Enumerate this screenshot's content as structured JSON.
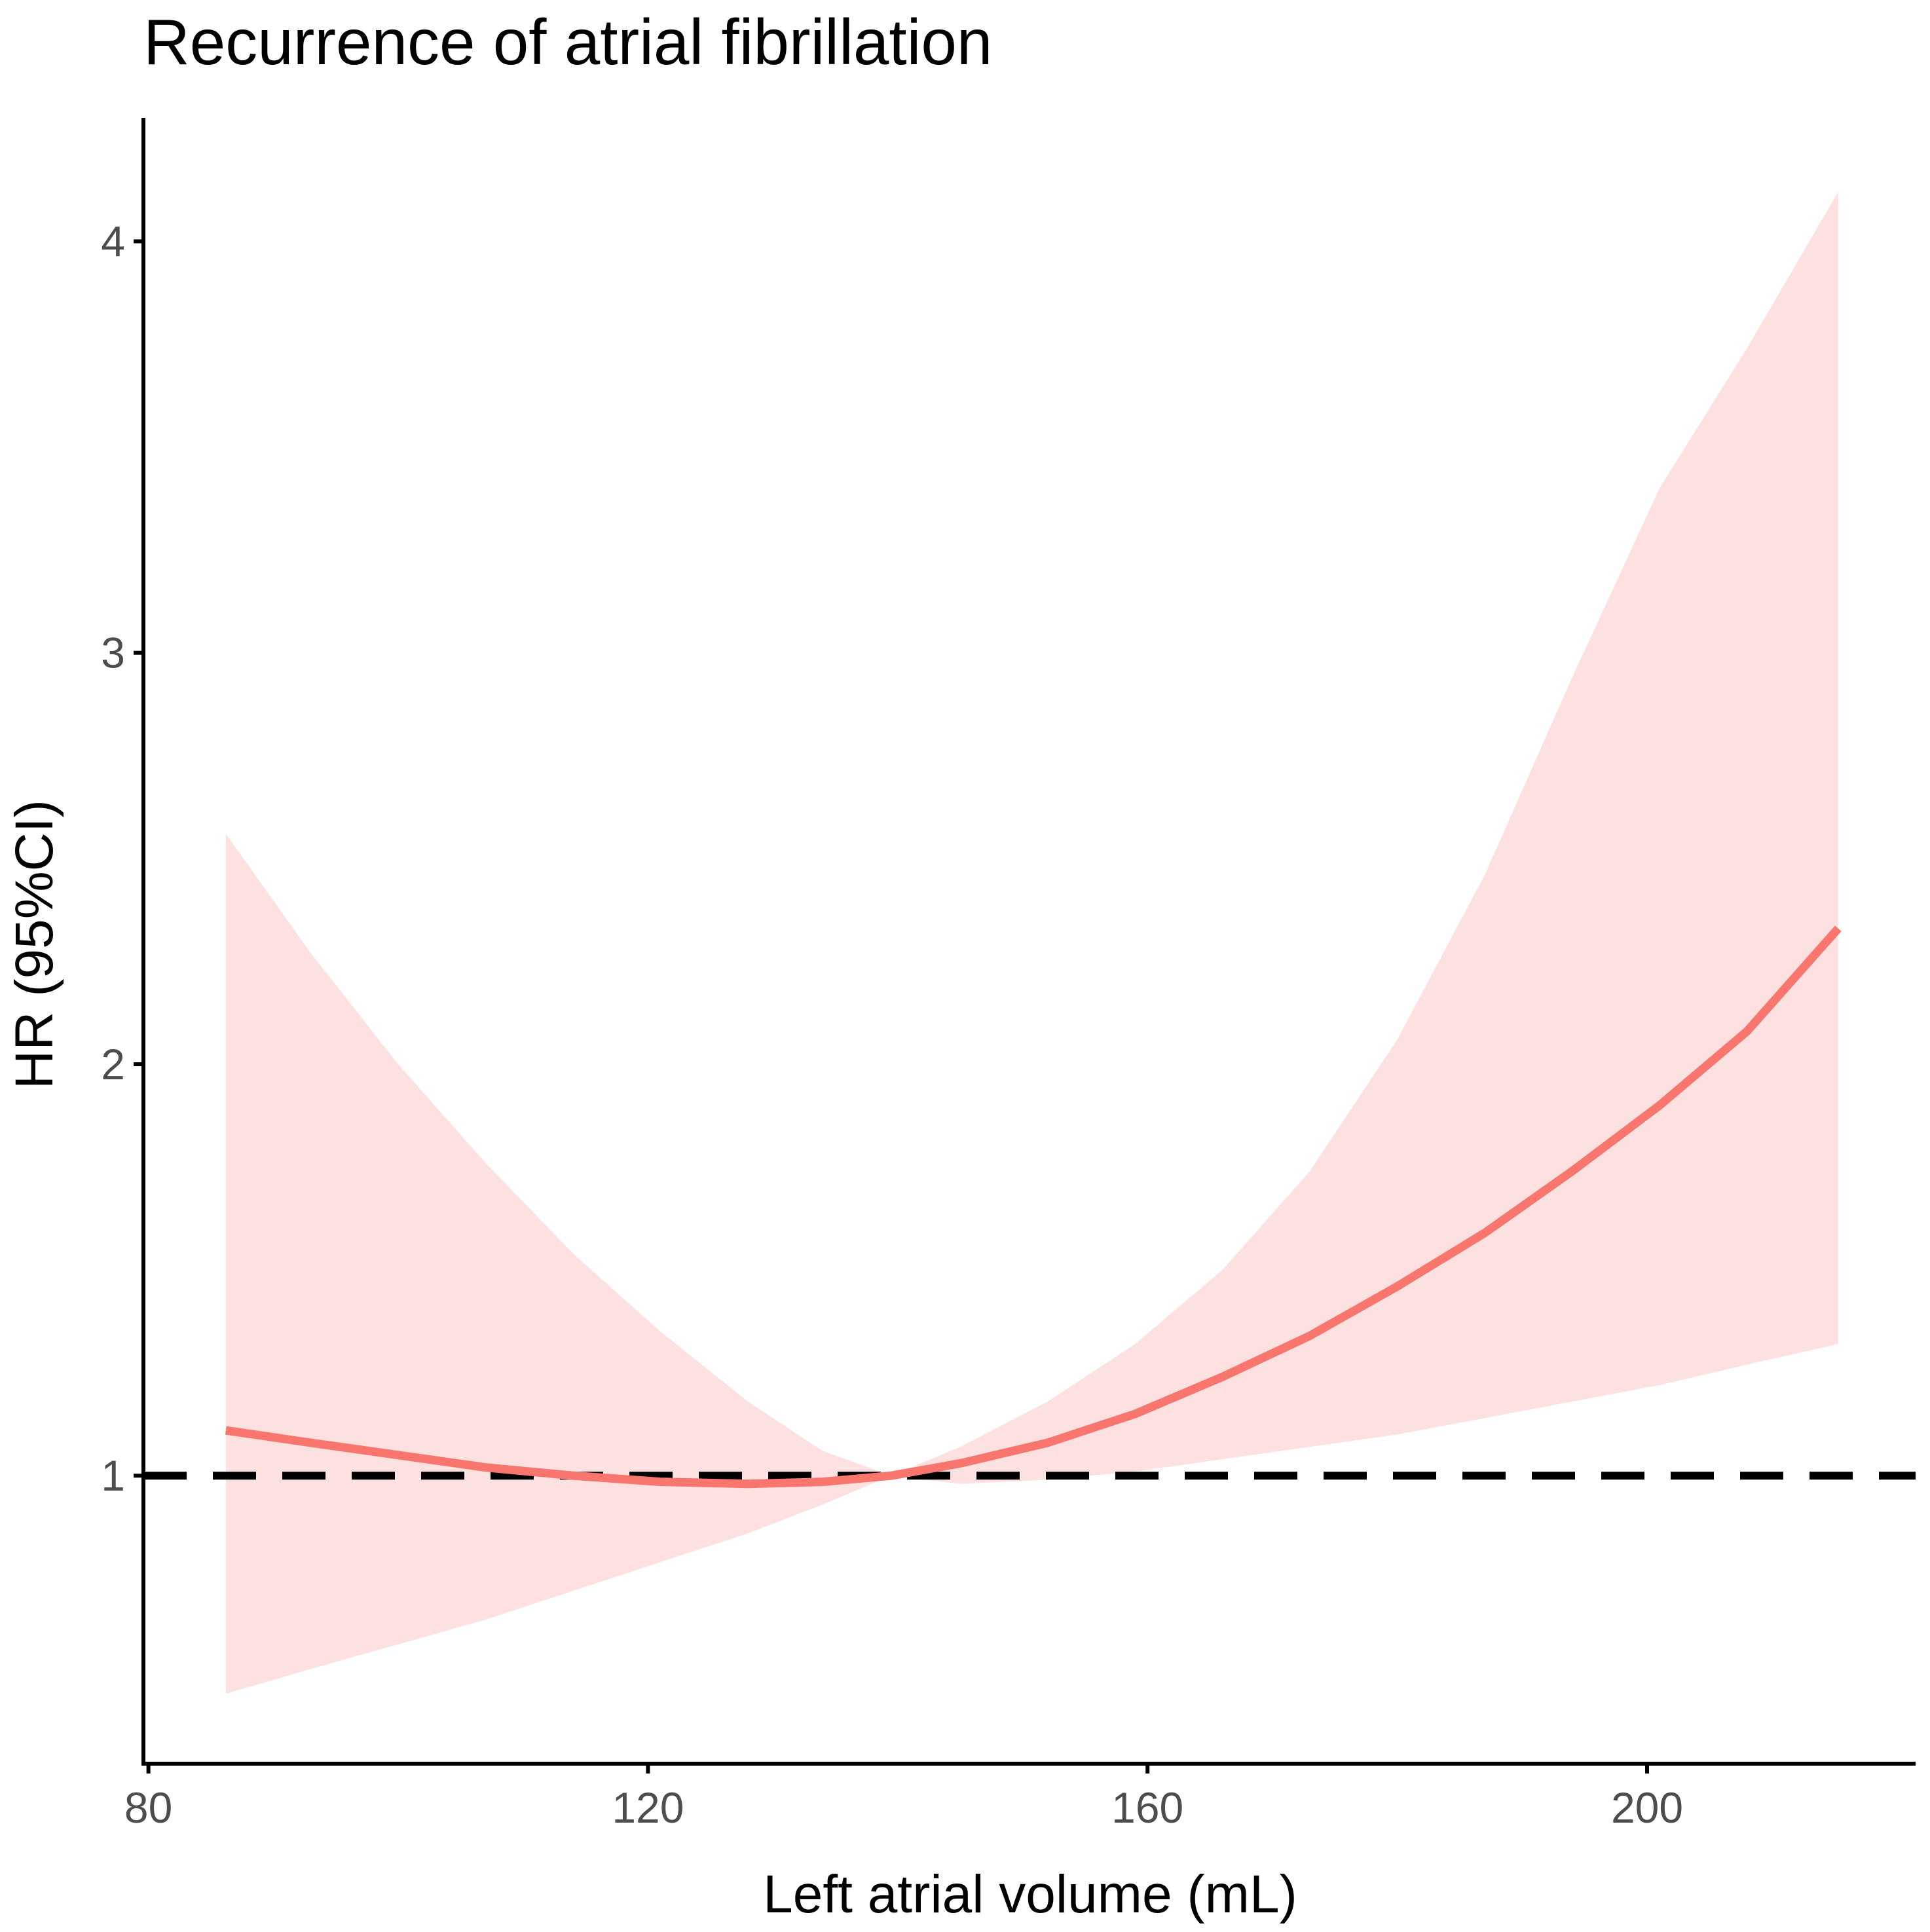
{
  "chart_data": {
    "type": "line",
    "title": "Recurrence of atrial fibrillation",
    "xlabel": "Left atrial volume (mL)",
    "ylabel": "HR (95%CI)",
    "xlim": [
      79.6,
      221.5
    ],
    "ylim": [
      0.3,
      4.3
    ],
    "x_ticks": [
      80,
      120,
      160,
      200
    ],
    "y_ticks": [
      1,
      2,
      3,
      4
    ],
    "reference_line": {
      "y": 1,
      "style": "dashed",
      "color": "#000000"
    },
    "series": [
      {
        "name": "HR",
        "color": "#F8766D",
        "band_color": "#FDE1E1",
        "x": [
          86.2,
          93,
          100,
          107,
          114,
          121,
          128,
          134,
          139.5,
          145,
          152,
          159,
          166,
          173,
          180,
          187,
          194,
          201,
          208,
          215.3
        ],
        "y": [
          1.11,
          1.08,
          1.05,
          1.02,
          1.0,
          0.985,
          0.98,
          0.985,
          1.0,
          1.03,
          1.08,
          1.15,
          1.24,
          1.34,
          1.46,
          1.59,
          1.74,
          1.9,
          2.08,
          2.33
        ],
        "lower": [
          0.47,
          0.53,
          0.59,
          0.65,
          0.72,
          0.79,
          0.86,
          0.93,
          1.0,
          0.98,
          0.99,
          1.01,
          1.04,
          1.07,
          1.1,
          1.14,
          1.18,
          1.22,
          1.27,
          1.32
        ],
        "upper": [
          2.56,
          2.27,
          2.0,
          1.76,
          1.54,
          1.35,
          1.18,
          1.06,
          1.0,
          1.07,
          1.18,
          1.32,
          1.5,
          1.74,
          2.06,
          2.46,
          2.94,
          3.4,
          3.74,
          4.12
        ]
      }
    ]
  }
}
